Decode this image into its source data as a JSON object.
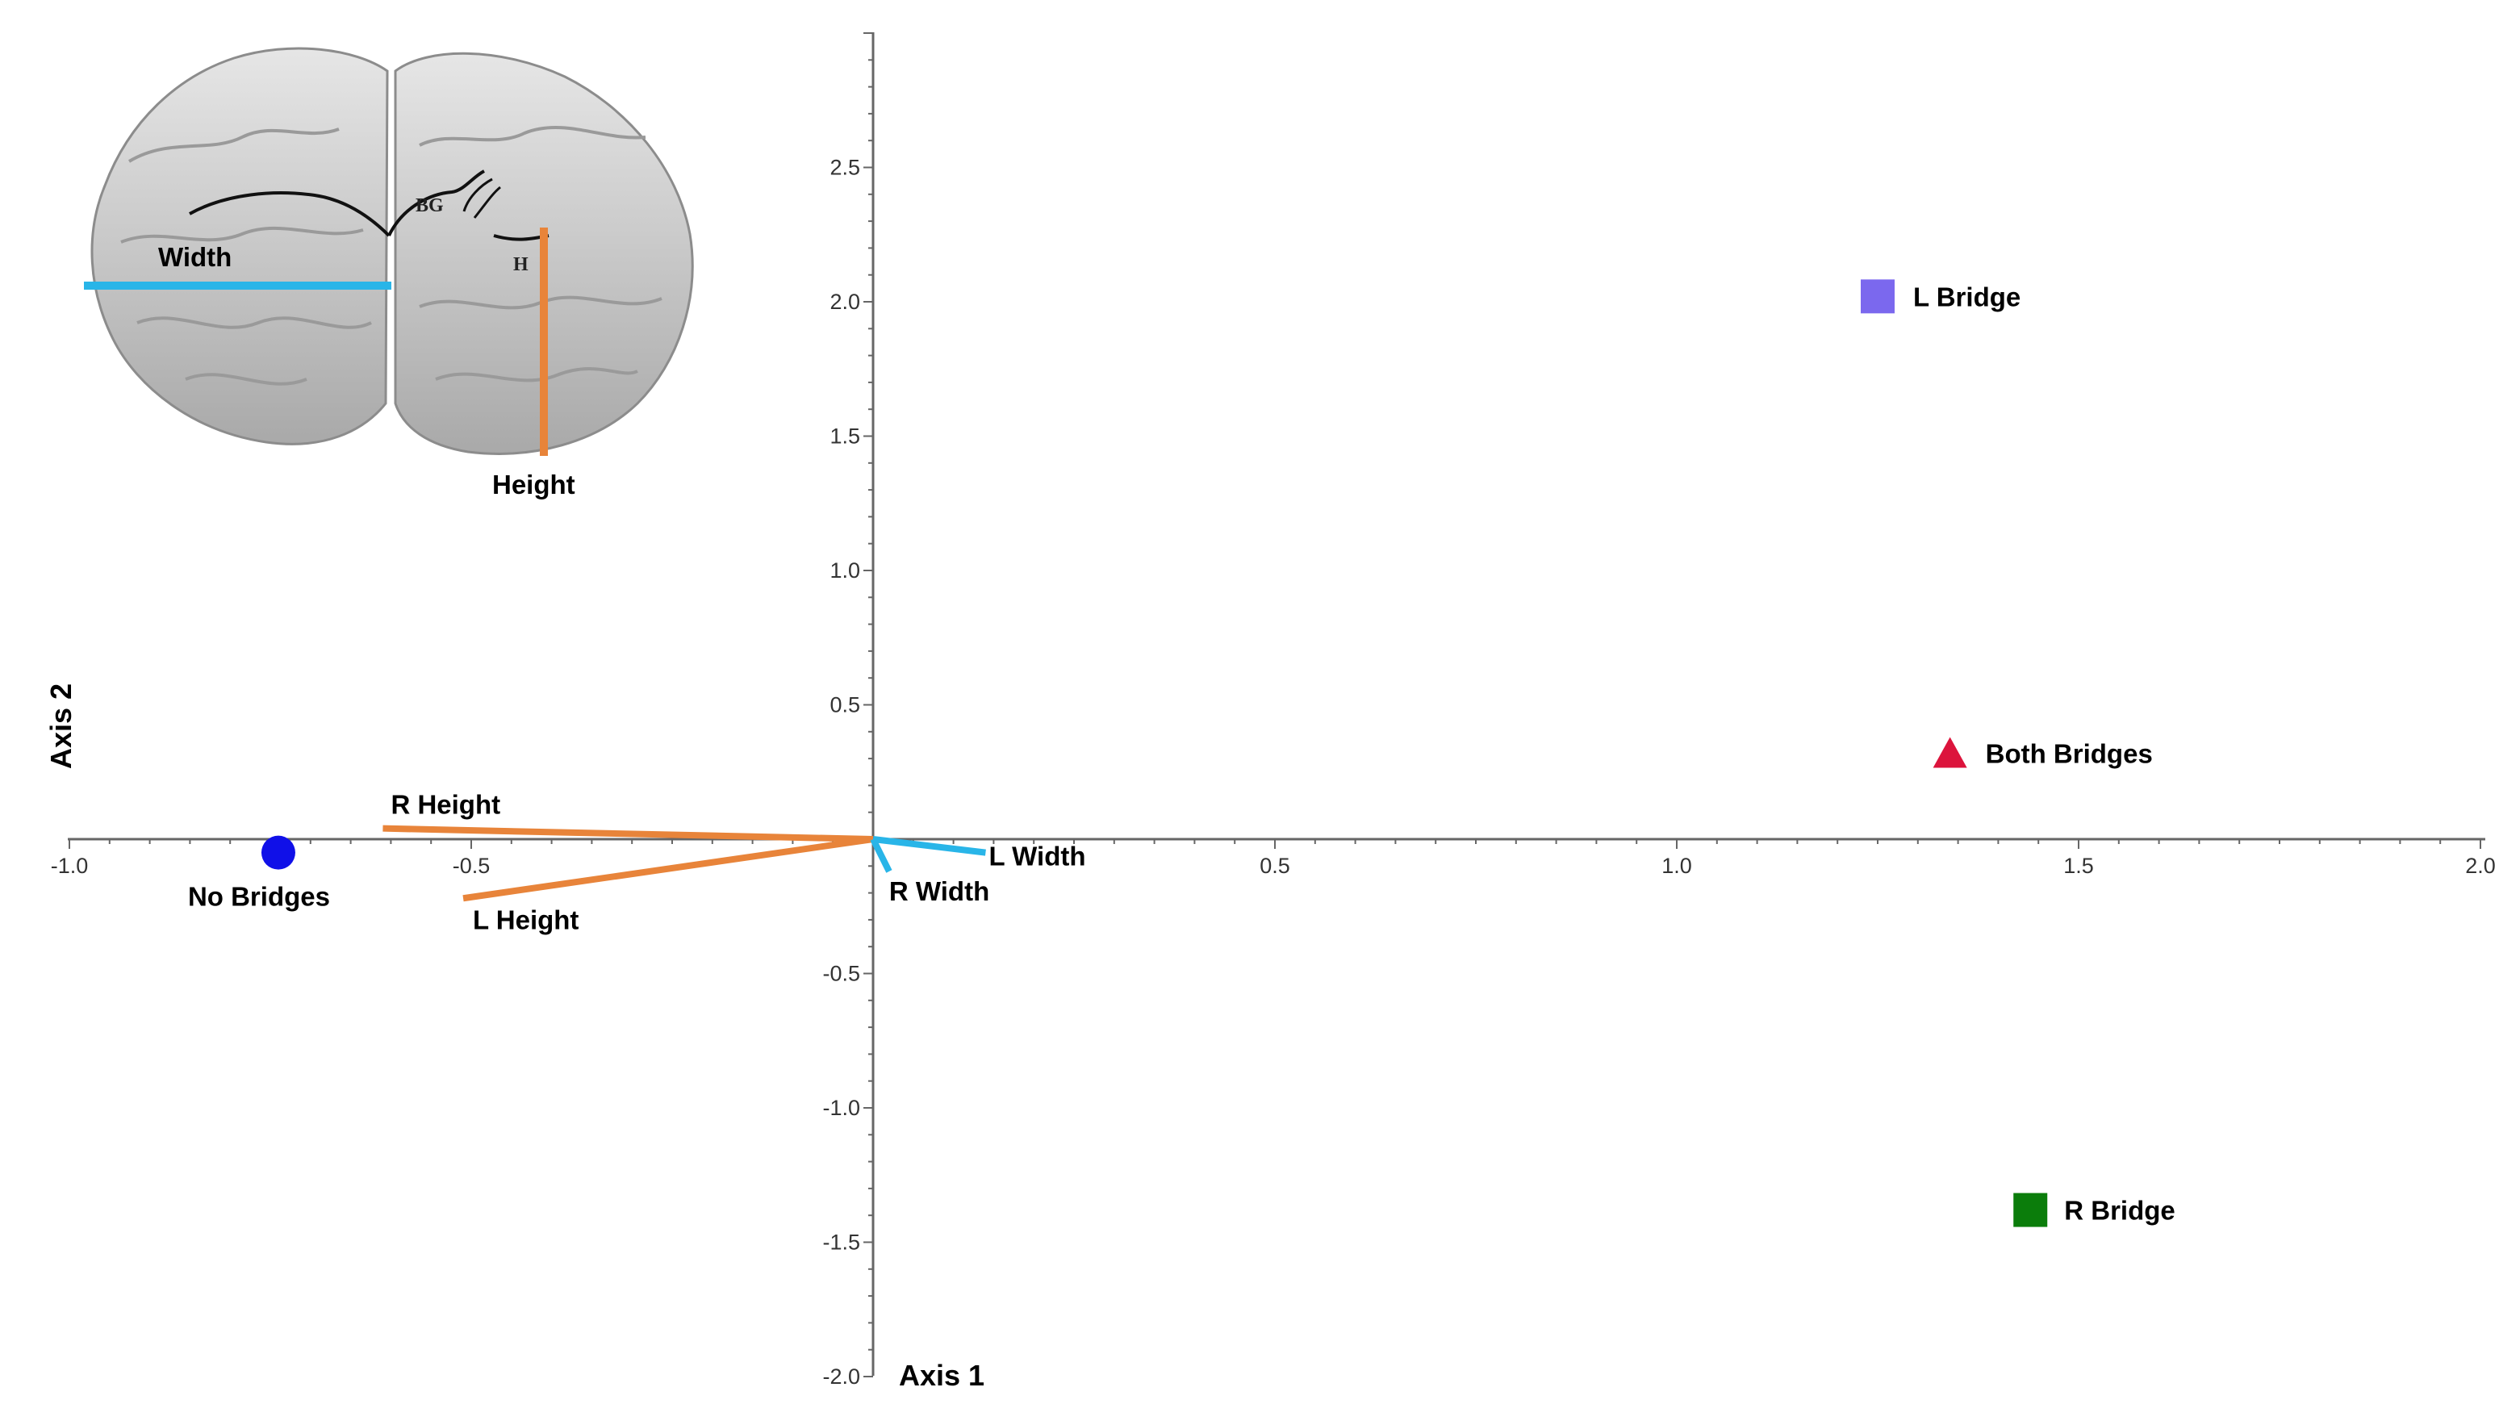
{
  "chart_data": {
    "type": "scatter",
    "subtype": "biplot",
    "xlabel": "Axis 1",
    "ylabel": "Axis 2",
    "xlim": [
      -1.0,
      2.0
    ],
    "ylim": [
      -2.0,
      3.0
    ],
    "x_ticks": [
      "-1.0",
      "-0.5",
      "0.5",
      "1.0",
      "1.5",
      "2.0"
    ],
    "y_ticks": [
      "2.5",
      "2.0",
      "1.5",
      "1.0",
      "0.5",
      "-0.5",
      "-1.0",
      "-1.5",
      "-2.0"
    ],
    "grid": false,
    "points": [
      {
        "label": "L Bridge",
        "x": 1.25,
        "y": 2.02,
        "marker": "square",
        "color": "#7b68ee"
      },
      {
        "label": "Both Bridges",
        "x": 1.34,
        "y": 0.32,
        "marker": "triangle",
        "color": "#dc143c"
      },
      {
        "label": "R Bridge",
        "x": 1.44,
        "y": -1.38,
        "marker": "square",
        "color": "#0b7d0b"
      },
      {
        "label": "No Bridges",
        "x": -0.74,
        "y": -0.05,
        "marker": "circle",
        "color": "#1010e8"
      }
    ],
    "vectors": [
      {
        "label": "R Height",
        "x": -0.61,
        "y": 0.04,
        "color": "#e8843a"
      },
      {
        "label": "L Height",
        "x": -0.51,
        "y": -0.22,
        "color": "#e8843a"
      },
      {
        "label": "L Width",
        "x": 0.14,
        "y": -0.05,
        "color": "#29b5e8"
      },
      {
        "label": "R Width",
        "x": 0.02,
        "y": -0.12,
        "color": "#29b5e8"
      }
    ]
  },
  "inset": {
    "width_label": "Width",
    "height_label": "Height",
    "bg_label": "BG",
    "h_label": "H",
    "width_color": "#29b5e8",
    "height_color": "#e8843a"
  }
}
